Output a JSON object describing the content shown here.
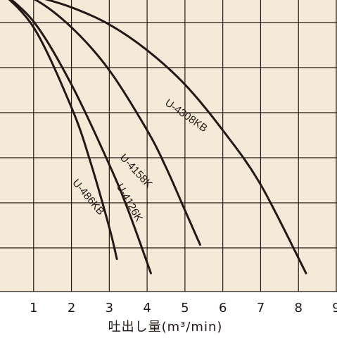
{
  "chart_data": {
    "type": "line",
    "xlabel": "吐出し量(m³/min)",
    "x_ticks": [
      "1",
      "2",
      "3",
      "4",
      "5",
      "6",
      "7",
      "8",
      "9"
    ],
    "xlim": [
      0,
      9
    ],
    "grid": true,
    "colors": {
      "plot_background": "#f5ead7",
      "line": "#231815"
    },
    "series": [
      {
        "name": "U-4308KB",
        "x": [
          0,
          1,
          2,
          3,
          4,
          5,
          6,
          7,
          8.2
        ],
        "y": [
          1.0,
          0.97,
          0.93,
          0.87,
          0.78,
          0.66,
          0.5,
          0.31,
          0.0
        ]
      },
      {
        "name": "U-4158K",
        "x": [
          0,
          1,
          2,
          3,
          4,
          4.5,
          5,
          5.4
        ],
        "y": [
          1.0,
          0.96,
          0.86,
          0.71,
          0.5,
          0.37,
          0.22,
          0.1
        ]
      },
      {
        "name": "U-4126K",
        "x": [
          0,
          1,
          2,
          3,
          3.5,
          4.1
        ],
        "y": [
          1.0,
          0.88,
          0.66,
          0.38,
          0.22,
          0.0
        ]
      },
      {
        "name": "U-486KB",
        "x": [
          0,
          1,
          2,
          2.5,
          3,
          3.2
        ],
        "y": [
          1.0,
          0.86,
          0.58,
          0.39,
          0.16,
          0.05
        ]
      }
    ]
  }
}
